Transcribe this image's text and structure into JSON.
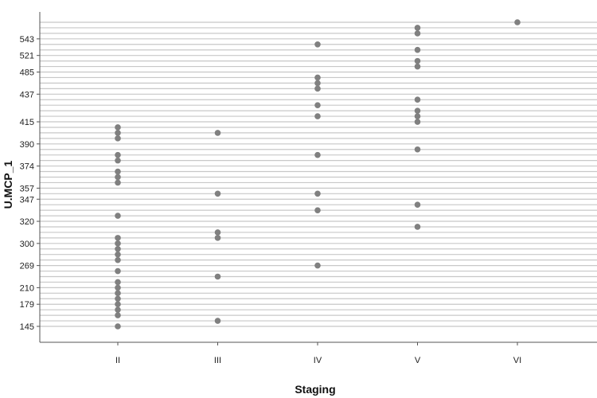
{
  "chart_data": {
    "type": "scatter",
    "title": "",
    "xlabel": "Staging",
    "ylabel": "U.MCP_1",
    "categories": [
      "II",
      "III",
      "IV",
      "V",
      "VI"
    ],
    "y_axis": {
      "categorical_levels": true,
      "tick_labels": [
        "145",
        "179",
        "210",
        "269",
        "300",
        "320",
        "347",
        "357",
        "374",
        "390",
        "415",
        "437",
        "485",
        "521",
        "543"
      ],
      "grid": "horizontal lines at every category level"
    },
    "points_by_category": {
      "II": [
        145,
        165,
        170,
        179,
        190,
        200,
        210,
        220,
        230,
        285,
        290,
        295,
        300,
        305,
        330,
        360,
        365,
        370,
        375,
        380,
        392,
        400,
        405
      ],
      "III": [
        160,
        225,
        305,
        310,
        350,
        400
      ],
      "IV": [
        269,
        335,
        350,
        380,
        420,
        430,
        455,
        460,
        480,
        540
      ],
      "V": [
        315,
        345,
        385,
        415,
        420,
        425,
        435,
        510,
        515,
        525,
        545,
        550
      ],
      "VI": [
        570
      ]
    },
    "marker_color": "#808080",
    "grid_color": "#c8c8c8",
    "axis_color": "#555555"
  }
}
